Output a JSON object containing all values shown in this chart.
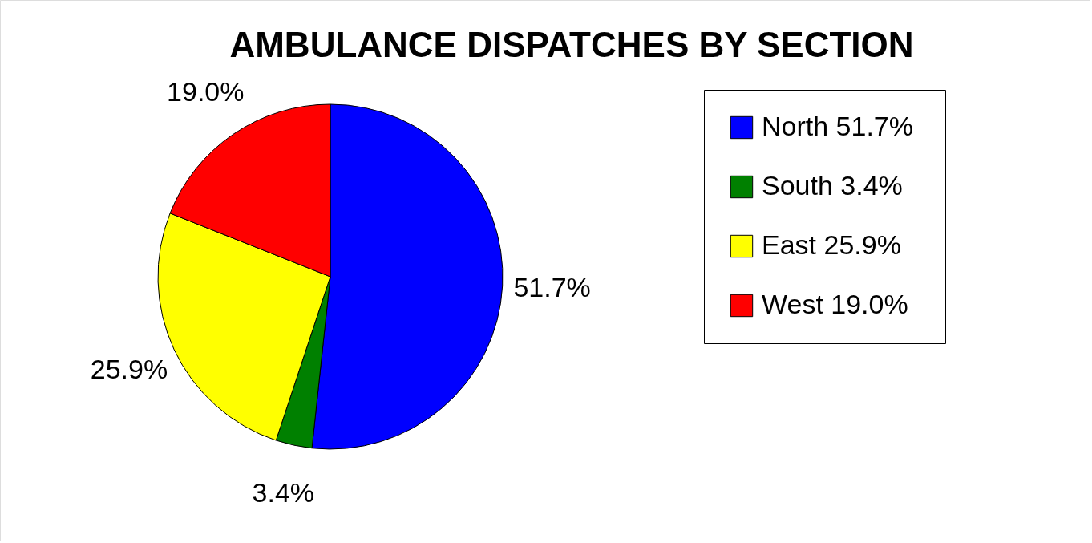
{
  "chart_data": {
    "type": "pie",
    "title": "AMBULANCE DISPATCHES BY SECTION",
    "categories": [
      "North",
      "South",
      "East",
      "West"
    ],
    "values": [
      51.7,
      3.4,
      25.9,
      19.0
    ],
    "value_labels": [
      "51.7%",
      "3.4%",
      "25.9%",
      "19.0%"
    ],
    "colors": [
      "#0000ff",
      "#008000",
      "#ffff00",
      "#ff0000"
    ],
    "legend": "right"
  }
}
